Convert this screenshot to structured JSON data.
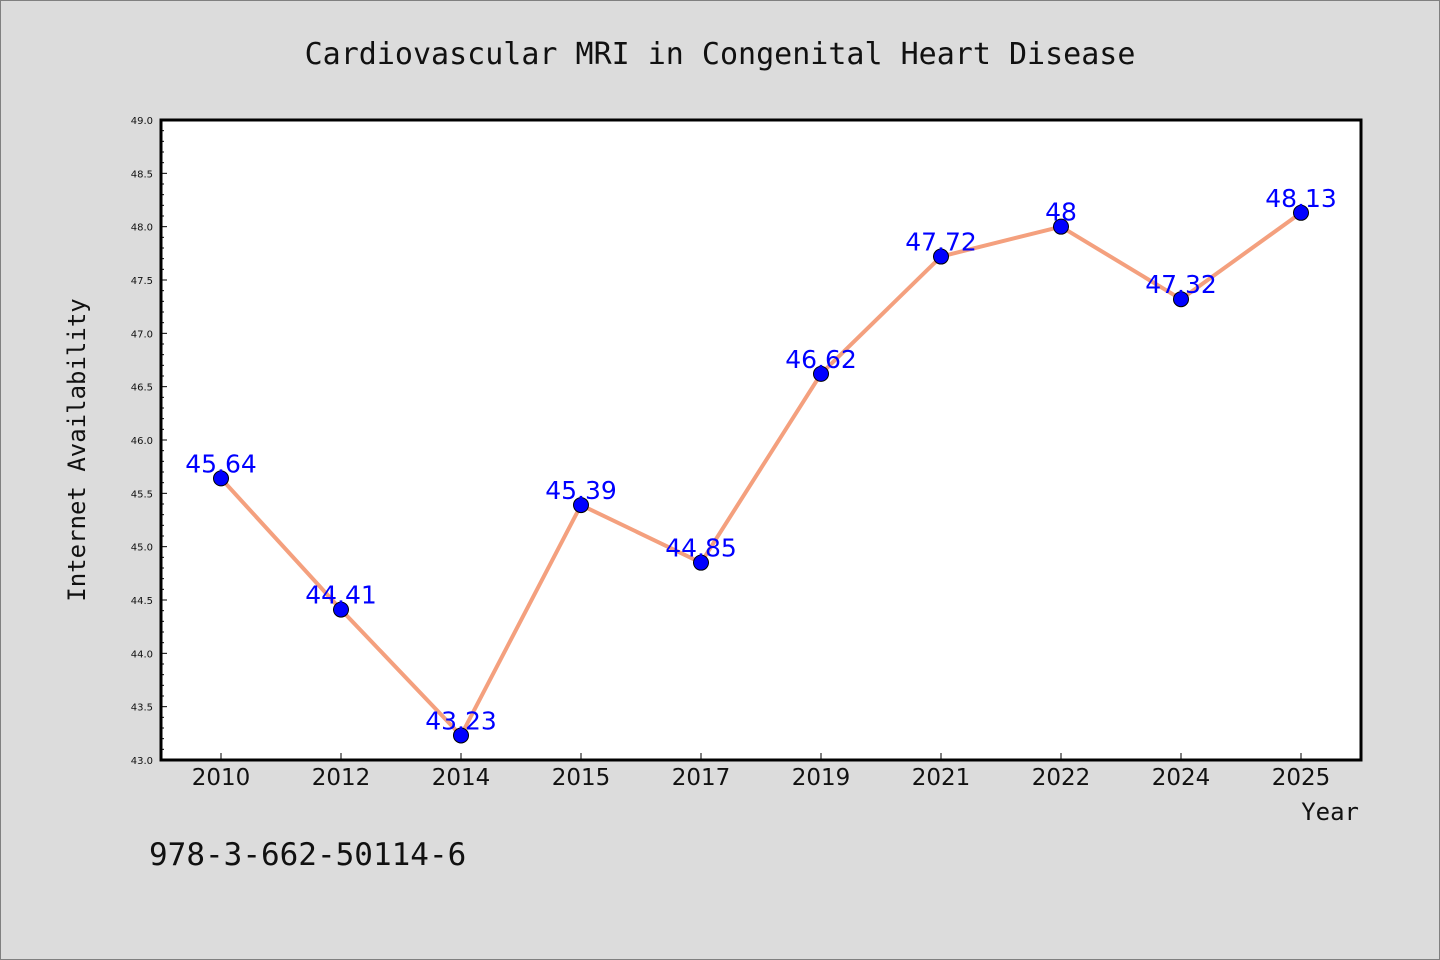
{
  "chart_data": {
    "type": "line",
    "title": "Cardiovascular MRI in Congenital Heart Disease",
    "xlabel": "Year",
    "ylabel": "Internet Availability",
    "categories": [
      "2010",
      "2012",
      "2014",
      "2015",
      "2017",
      "2019",
      "2021",
      "2022",
      "2024",
      "2025"
    ],
    "values": [
      45.64,
      44.41,
      43.23,
      45.39,
      44.85,
      46.62,
      47.72,
      48,
      47.32,
      48.13
    ],
    "data_labels": [
      "45.64",
      "44.41",
      "43.23",
      "45.39",
      "44.85",
      "46.62",
      "47.72",
      "48",
      "47.32",
      "48.13"
    ],
    "ylim": [
      43.0,
      49.0
    ],
    "yticks": [
      "43.0",
      "43.5",
      "44.0",
      "44.5",
      "45.0",
      "45.5",
      "46.0",
      "46.5",
      "47.0",
      "47.5",
      "48.0",
      "48.5",
      "49.0"
    ],
    "grid": false,
    "legend": "none",
    "colors": {
      "line": "#f4a07e",
      "marker": "#0000ff",
      "label": "#0000ff",
      "background": "#dcdcdc",
      "plot_background": "#ffffff"
    }
  },
  "footer_text": "978-3-662-50114-6"
}
